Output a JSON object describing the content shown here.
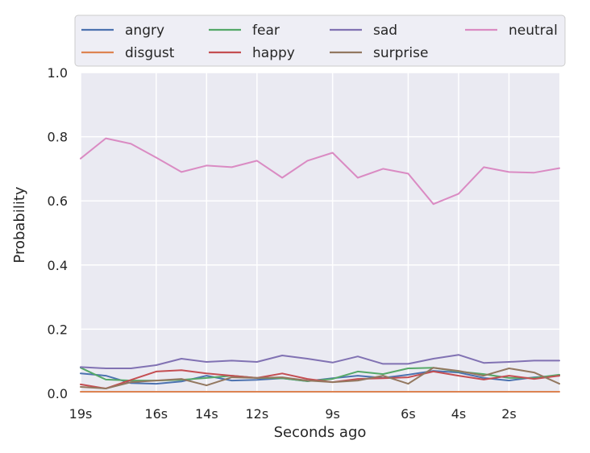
{
  "chart_data": {
    "type": "line",
    "title": "",
    "xlabel": "Seconds ago",
    "ylabel": "Probability",
    "ylim": [
      0,
      1.0
    ],
    "y_ticks": [
      0.0,
      0.2,
      0.4,
      0.6,
      0.8,
      1.0
    ],
    "y_tick_labels": [
      "0.0",
      "0.2",
      "0.4",
      "0.6",
      "0.8",
      "1.0"
    ],
    "x": [
      19,
      18,
      17,
      16,
      15,
      14,
      13,
      12,
      11,
      10,
      9,
      8,
      7,
      6,
      5,
      4,
      3,
      2,
      1,
      0
    ],
    "x_ticks": [
      19,
      16,
      14,
      12,
      9,
      6,
      4,
      2
    ],
    "x_tick_labels": [
      "19s",
      "16s",
      "14s",
      "12s",
      "9s",
      "6s",
      "4s",
      "2s"
    ],
    "grid": true,
    "legend": "top",
    "series": [
      {
        "name": "angry",
        "color": "#4c72b0",
        "values": [
          0.062,
          0.055,
          0.032,
          0.03,
          0.037,
          0.055,
          0.04,
          0.042,
          0.047,
          0.038,
          0.047,
          0.055,
          0.048,
          0.058,
          0.07,
          0.065,
          0.048,
          0.04,
          0.05,
          0.055
        ]
      },
      {
        "name": "disgust",
        "color": "#dd8452",
        "values": [
          0.005,
          0.005,
          0.005,
          0.005,
          0.005,
          0.005,
          0.005,
          0.005,
          0.005,
          0.005,
          0.005,
          0.005,
          0.005,
          0.005,
          0.005,
          0.005,
          0.005,
          0.005,
          0.005,
          0.005
        ]
      },
      {
        "name": "fear",
        "color": "#55a868",
        "values": [
          0.08,
          0.043,
          0.04,
          0.04,
          0.042,
          0.048,
          0.055,
          0.048,
          0.047,
          0.038,
          0.045,
          0.068,
          0.06,
          0.078,
          0.08,
          0.068,
          0.06,
          0.048,
          0.048,
          0.058
        ]
      },
      {
        "name": "happy",
        "color": "#c44e52",
        "values": [
          0.028,
          0.015,
          0.042,
          0.068,
          0.072,
          0.062,
          0.055,
          0.048,
          0.062,
          0.045,
          0.035,
          0.045,
          0.047,
          0.05,
          0.068,
          0.055,
          0.043,
          0.055,
          0.045,
          0.055
        ]
      },
      {
        "name": "sad",
        "color": "#8172b3",
        "values": [
          0.082,
          0.078,
          0.078,
          0.088,
          0.108,
          0.098,
          0.102,
          0.098,
          0.118,
          0.108,
          0.096,
          0.115,
          0.092,
          0.092,
          0.108,
          0.12,
          0.095,
          0.098,
          0.102,
          0.102
        ]
      },
      {
        "name": "surprise",
        "color": "#937860",
        "values": [
          0.02,
          0.015,
          0.035,
          0.04,
          0.045,
          0.025,
          0.05,
          0.048,
          0.05,
          0.04,
          0.035,
          0.04,
          0.055,
          0.03,
          0.08,
          0.07,
          0.055,
          0.078,
          0.065,
          0.03
        ]
      },
      {
        "name": "neutral",
        "color": "#da8bc3",
        "values": [
          0.732,
          0.795,
          0.778,
          0.735,
          0.69,
          0.71,
          0.705,
          0.725,
          0.672,
          0.725,
          0.75,
          0.672,
          0.7,
          0.685,
          0.59,
          0.622,
          0.705,
          0.69,
          0.688,
          0.702
        ]
      }
    ]
  },
  "colors": {
    "plot_background": "#eaeaf2",
    "grid": "#ffffff",
    "text": "#262626"
  }
}
